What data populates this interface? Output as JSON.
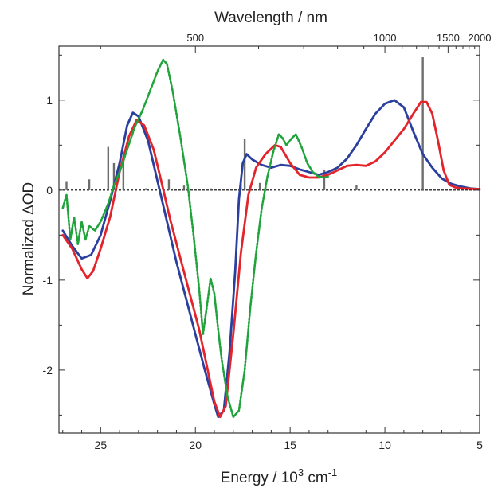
{
  "chart_data": {
    "type": "line",
    "xlabel_main": "Energy / 10",
    "xlabel_sup1": "3",
    "xlabel_unit": " cm",
    "xlabel_sup2": "-1",
    "ylabel": "Normalized ΔOD",
    "top_xlabel": "Wavelength / nm",
    "x_range": [
      27.2,
      5
    ],
    "ylim": [
      -2.7,
      1.6
    ],
    "x_ticks": [
      25,
      20,
      15,
      10,
      5
    ],
    "x_tick_labels": [
      "25",
      "20",
      "15",
      "10",
      "5"
    ],
    "y_ticks": [
      1,
      0,
      -1,
      -2
    ],
    "y_tick_labels": [
      "1",
      "0",
      "-1",
      "-2"
    ],
    "top_ticks_nm": [
      500,
      1000,
      1500,
      2000
    ],
    "top_tick_labels": [
      "500",
      "1000",
      "1500",
      "2000"
    ],
    "zero_line": true,
    "colors": {
      "blue": "#2b3f9e",
      "red": "#e3242b",
      "green": "#1fa33a",
      "sticks": "#6e6e6e"
    },
    "series": [
      {
        "color": "blue",
        "style": "solid",
        "points": [
          [
            27.0,
            -0.45
          ],
          [
            26.5,
            -0.62
          ],
          [
            26.0,
            -0.76
          ],
          [
            25.5,
            -0.72
          ],
          [
            25.0,
            -0.5
          ],
          [
            24.5,
            -0.12
          ],
          [
            24.0,
            0.3
          ],
          [
            23.6,
            0.72
          ],
          [
            23.3,
            0.86
          ],
          [
            23.0,
            0.82
          ],
          [
            22.5,
            0.55
          ],
          [
            22.0,
            0.1
          ],
          [
            21.5,
            -0.35
          ],
          [
            21.0,
            -0.8
          ],
          [
            20.5,
            -1.2
          ],
          [
            20.0,
            -1.6
          ],
          [
            19.5,
            -2.0
          ],
          [
            19.0,
            -2.38
          ],
          [
            18.8,
            -2.52
          ],
          [
            18.5,
            -2.45
          ],
          [
            18.2,
            -1.8
          ],
          [
            17.9,
            -0.9
          ],
          [
            17.7,
            -0.1
          ],
          [
            17.5,
            0.3
          ],
          [
            17.3,
            0.4
          ],
          [
            17.0,
            0.34
          ],
          [
            16.5,
            0.28
          ],
          [
            16.0,
            0.25
          ],
          [
            15.5,
            0.28
          ],
          [
            15.0,
            0.27
          ],
          [
            14.5,
            0.23
          ],
          [
            14.0,
            0.2
          ],
          [
            13.5,
            0.17
          ],
          [
            13.0,
            0.2
          ],
          [
            12.5,
            0.25
          ],
          [
            12.0,
            0.35
          ],
          [
            11.5,
            0.5
          ],
          [
            11.0,
            0.68
          ],
          [
            10.5,
            0.85
          ],
          [
            10.0,
            0.96
          ],
          [
            9.5,
            1.0
          ],
          [
            9.0,
            0.92
          ],
          [
            8.5,
            0.65
          ],
          [
            8.0,
            0.4
          ],
          [
            7.5,
            0.25
          ],
          [
            7.0,
            0.13
          ],
          [
            6.5,
            0.07
          ],
          [
            6.0,
            0.04
          ],
          [
            5.5,
            0.02
          ],
          [
            5.0,
            0.01
          ]
        ]
      },
      {
        "color": "red",
        "style": "solid",
        "points": [
          [
            27.0,
            -0.5
          ],
          [
            26.5,
            -0.65
          ],
          [
            26.0,
            -0.88
          ],
          [
            25.7,
            -0.98
          ],
          [
            25.4,
            -0.9
          ],
          [
            25.0,
            -0.65
          ],
          [
            24.5,
            -0.3
          ],
          [
            24.0,
            0.2
          ],
          [
            23.5,
            0.6
          ],
          [
            23.1,
            0.78
          ],
          [
            22.7,
            0.72
          ],
          [
            22.2,
            0.45
          ],
          [
            21.8,
            0.1
          ],
          [
            21.3,
            -0.35
          ],
          [
            20.8,
            -0.75
          ],
          [
            20.3,
            -1.15
          ],
          [
            19.8,
            -1.55
          ],
          [
            19.4,
            -1.95
          ],
          [
            19.0,
            -2.35
          ],
          [
            18.7,
            -2.52
          ],
          [
            18.4,
            -2.4
          ],
          [
            18.0,
            -1.6
          ],
          [
            17.6,
            -0.7
          ],
          [
            17.2,
            -0.05
          ],
          [
            16.8,
            0.25
          ],
          [
            16.3,
            0.4
          ],
          [
            15.8,
            0.5
          ],
          [
            15.5,
            0.48
          ],
          [
            15.0,
            0.3
          ],
          [
            14.5,
            0.17
          ],
          [
            14.0,
            0.14
          ],
          [
            13.5,
            0.14
          ],
          [
            13.0,
            0.17
          ],
          [
            12.5,
            0.22
          ],
          [
            12.0,
            0.27
          ],
          [
            11.5,
            0.28
          ],
          [
            11.0,
            0.27
          ],
          [
            10.5,
            0.32
          ],
          [
            10.0,
            0.42
          ],
          [
            9.5,
            0.55
          ],
          [
            9.0,
            0.68
          ],
          [
            8.5,
            0.85
          ],
          [
            8.1,
            0.98
          ],
          [
            7.8,
            0.98
          ],
          [
            7.5,
            0.85
          ],
          [
            7.2,
            0.55
          ],
          [
            6.9,
            0.22
          ],
          [
            6.6,
            0.06
          ],
          [
            6.3,
            0.03
          ],
          [
            6.0,
            0.02
          ],
          [
            5.0,
            0.01
          ]
        ]
      },
      {
        "color": "green",
        "style": "dotted",
        "points": [
          [
            27.0,
            -0.2
          ],
          [
            26.8,
            -0.05
          ],
          [
            26.6,
            -0.55
          ],
          [
            26.4,
            -0.3
          ],
          [
            26.2,
            -0.6
          ],
          [
            26.0,
            -0.35
          ],
          [
            25.8,
            -0.55
          ],
          [
            25.6,
            -0.4
          ],
          [
            25.3,
            -0.45
          ],
          [
            25.0,
            -0.35
          ],
          [
            24.6,
            -0.15
          ],
          [
            24.3,
            0.05
          ],
          [
            24.0,
            0.2
          ],
          [
            23.6,
            0.45
          ],
          [
            23.2,
            0.7
          ],
          [
            22.8,
            0.88
          ],
          [
            22.4,
            1.1
          ],
          [
            22.0,
            1.32
          ],
          [
            21.7,
            1.45
          ],
          [
            21.5,
            1.4
          ],
          [
            21.2,
            1.1
          ],
          [
            20.8,
            0.6
          ],
          [
            20.4,
            0.05
          ],
          [
            20.1,
            -0.5
          ],
          [
            19.8,
            -1.1
          ],
          [
            19.6,
            -1.6
          ],
          [
            19.4,
            -1.3
          ],
          [
            19.2,
            -0.98
          ],
          [
            19.0,
            -1.15
          ],
          [
            18.8,
            -1.55
          ],
          [
            18.6,
            -1.9
          ],
          [
            18.3,
            -2.3
          ],
          [
            18.0,
            -2.52
          ],
          [
            17.7,
            -2.45
          ],
          [
            17.4,
            -2.0
          ],
          [
            17.1,
            -1.3
          ],
          [
            16.8,
            -0.7
          ],
          [
            16.5,
            -0.2
          ],
          [
            16.2,
            0.15
          ],
          [
            15.9,
            0.42
          ],
          [
            15.6,
            0.62
          ],
          [
            15.4,
            0.58
          ],
          [
            15.2,
            0.5
          ],
          [
            14.9,
            0.58
          ],
          [
            14.7,
            0.62
          ],
          [
            14.4,
            0.48
          ],
          [
            14.1,
            0.3
          ],
          [
            13.8,
            0.2
          ],
          [
            13.5,
            0.15
          ],
          [
            13.2,
            0.14
          ],
          [
            13.0,
            0.15
          ]
        ]
      }
    ],
    "sticks": [
      [
        26.8,
        0.1
      ],
      [
        25.6,
        0.12
      ],
      [
        24.6,
        0.48
      ],
      [
        24.3,
        0.3
      ],
      [
        23.8,
        0.38
      ],
      [
        22.6,
        0.02
      ],
      [
        21.4,
        0.12
      ],
      [
        20.6,
        0.05
      ],
      [
        19.2,
        0.02
      ],
      [
        17.6,
        0.12
      ],
      [
        17.4,
        0.57
      ],
      [
        16.6,
        0.08
      ],
      [
        13.2,
        0.22
      ],
      [
        11.5,
        0.06
      ],
      [
        8.0,
        1.48
      ]
    ]
  }
}
